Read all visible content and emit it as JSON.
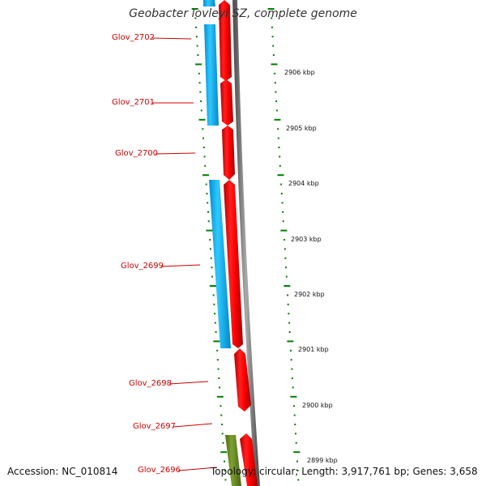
{
  "title": "Geobacter lovleyi SZ, complete genome",
  "genes": [
    {
      "name": "Glov_2702"
    },
    {
      "name": "Glov_2701"
    },
    {
      "name": "Glov_2700"
    },
    {
      "name": "Glov_2699"
    },
    {
      "name": "Glov_2698"
    },
    {
      "name": "Glov_2697"
    },
    {
      "name": "Glov_2696"
    }
  ],
  "ticks": [
    {
      "label": "2906 kbp"
    },
    {
      "label": "2905 kbp"
    },
    {
      "label": "2904 kbp"
    },
    {
      "label": "2903 kbp"
    },
    {
      "label": "2902 kbp"
    },
    {
      "label": "2901 kbp"
    },
    {
      "label": "2900 kbp"
    },
    {
      "label": "2899 kbp"
    }
  ],
  "footer": {
    "accession": "Accession: NC_010814",
    "topology": "Topology: circular; Length: 3,917,761 bp; Genes: 3,658"
  },
  "colors": {
    "gene_label": "#cc0000",
    "forward_cds": "#ff0000",
    "reverse_cds": "#00aaee",
    "other_feature": "#6b8e23",
    "backbone": "#808080",
    "tick": "#008000"
  }
}
